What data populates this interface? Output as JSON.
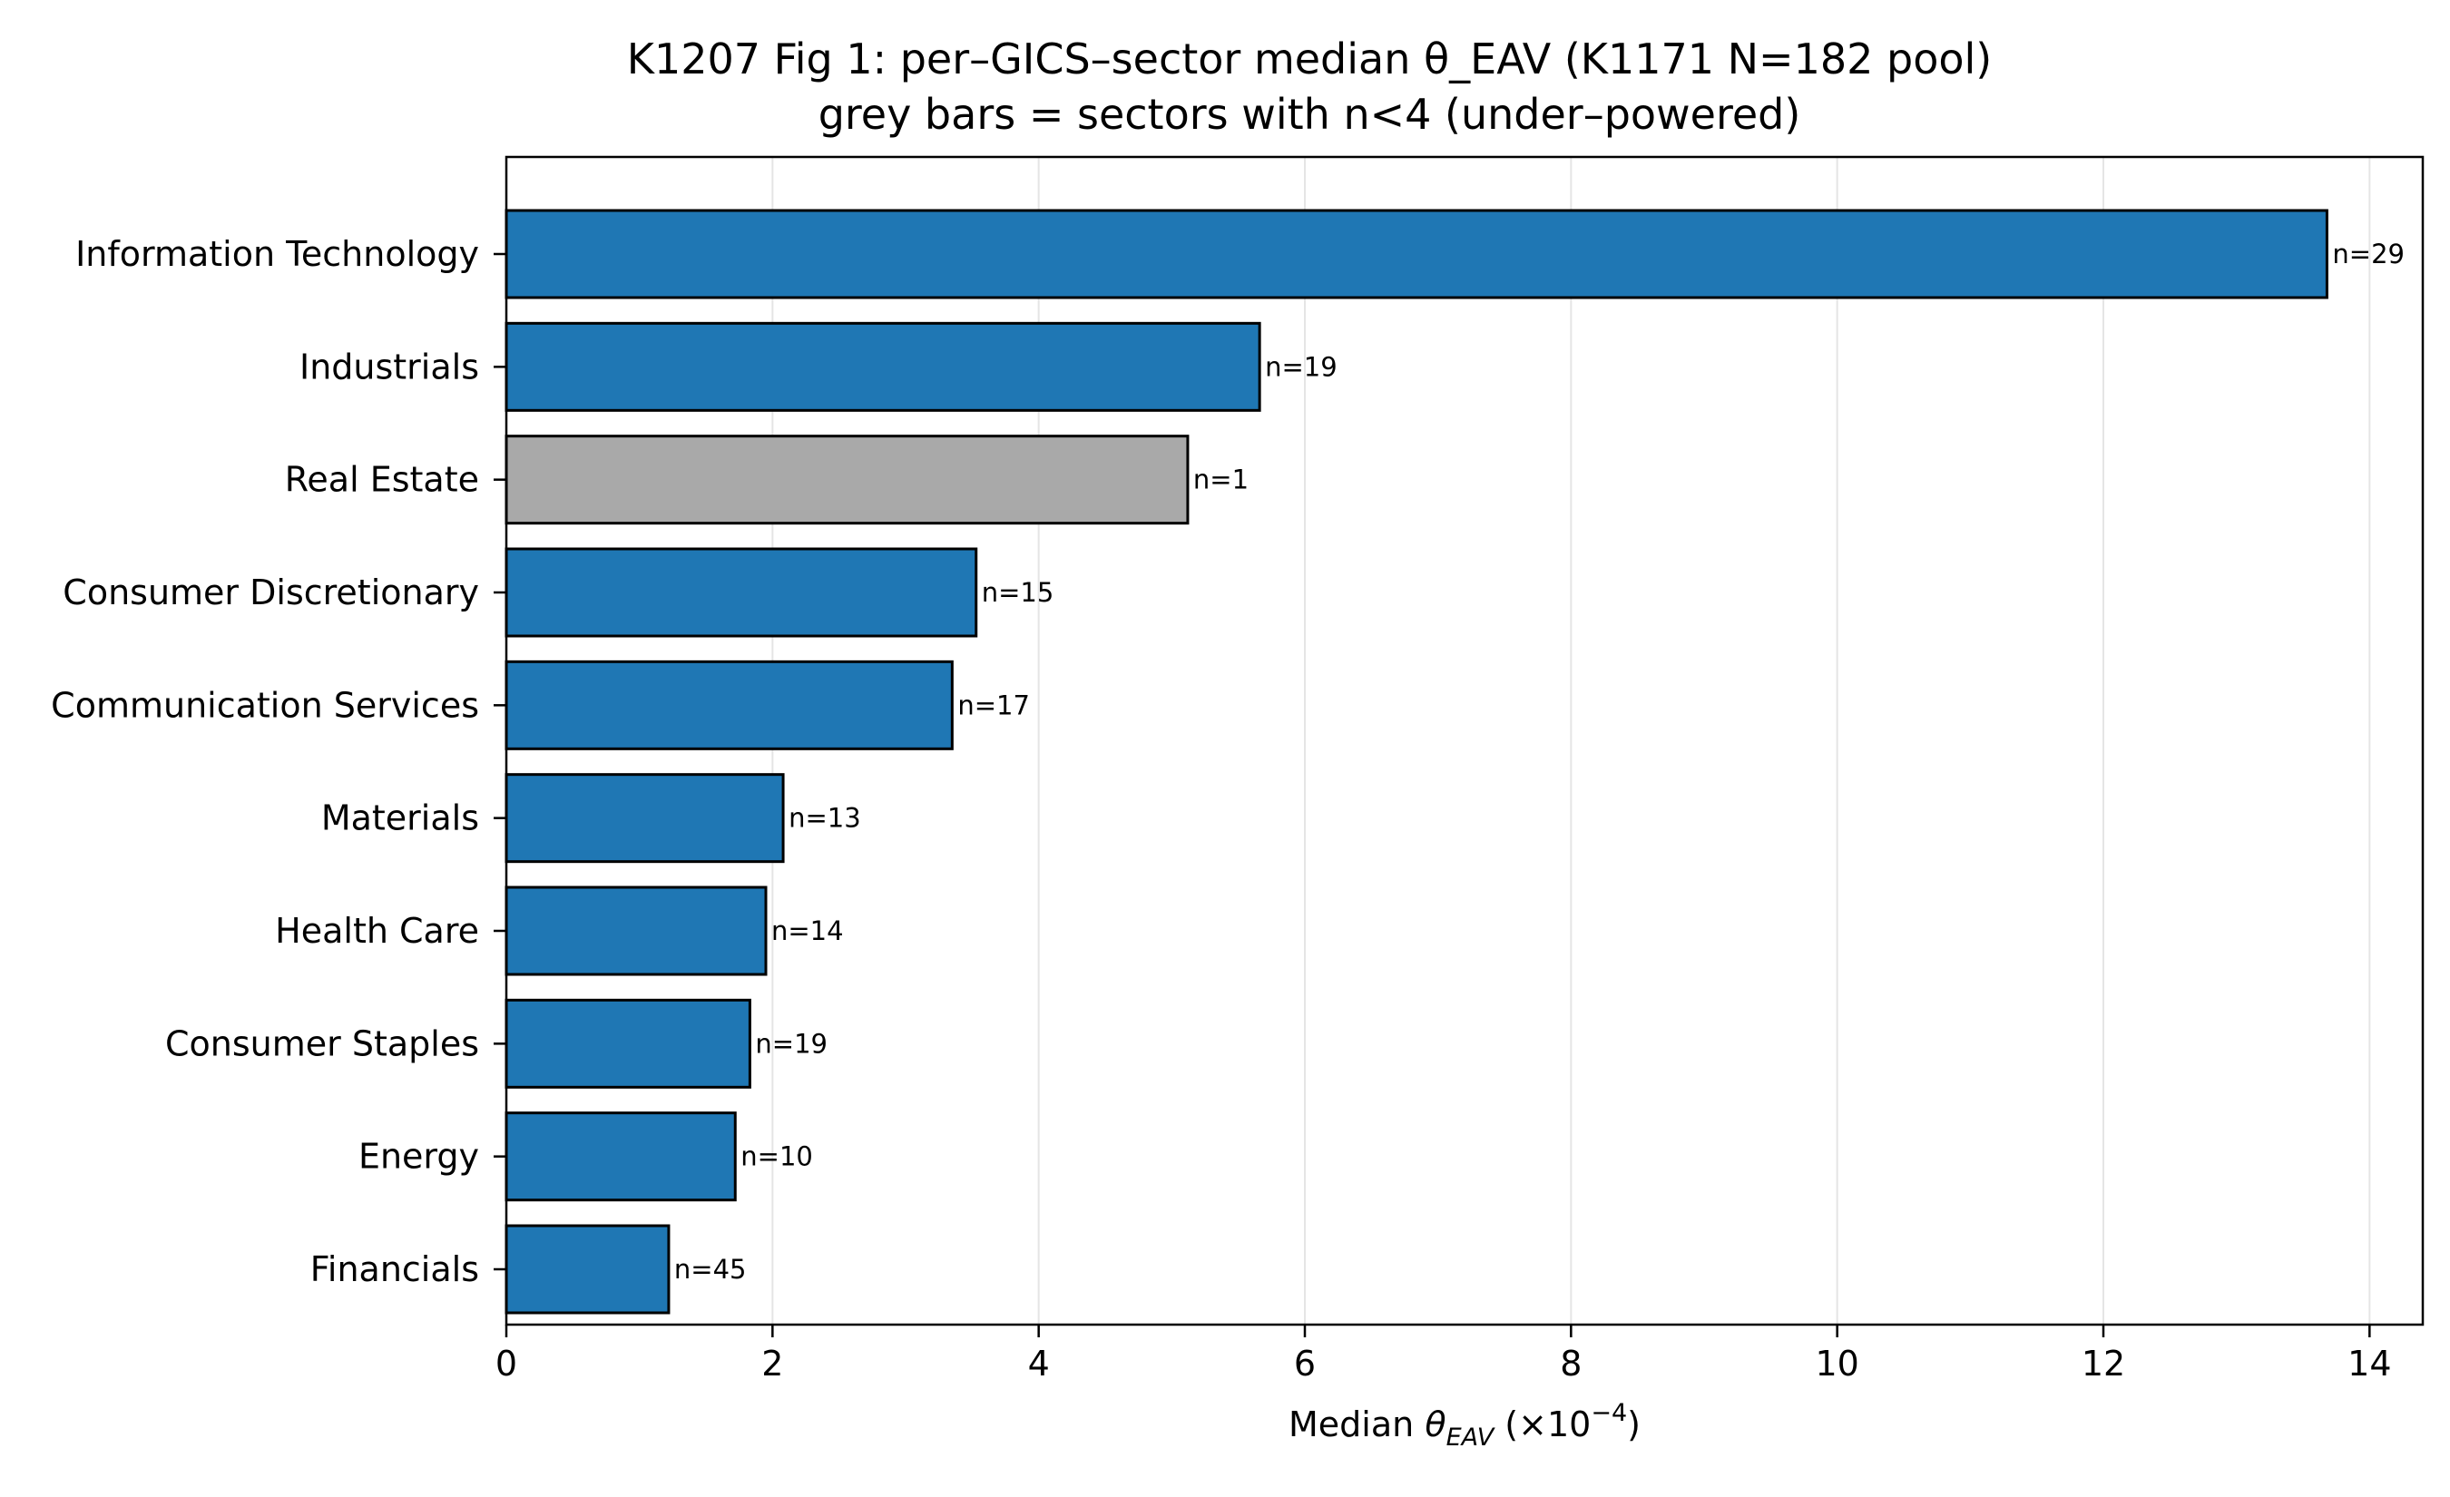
{
  "chart_data": {
    "type": "bar",
    "orientation": "horizontal",
    "title": "K1207 Fig 1: per–GICS–sector median θ_EAV (K1171 N=182 pool)",
    "subtitle": "grey bars = sectors with n<4 (under–powered)",
    "xlabel_prefix": "Median ",
    "xlabel_symbol": "θ",
    "xlabel_subscript": "EAV",
    "xlabel_unit": " (×10",
    "xlabel_exponent": "−4",
    "xlabel_close": ")",
    "xlim": [
      0,
      14.4
    ],
    "xticks": [
      0,
      2,
      4,
      6,
      8,
      10,
      12,
      14
    ],
    "xtick_labels": [
      "0",
      "2",
      "4",
      "6",
      "8",
      "10",
      "12",
      "14"
    ],
    "grid": "x",
    "categories": [
      "Information Technology",
      "Industrials",
      "Real Estate",
      "Consumer Discretionary",
      "Communication Services",
      "Materials",
      "Health Care",
      "Consumer Staples",
      "Energy",
      "Financials"
    ],
    "values": [
      13.68,
      5.66,
      5.12,
      3.53,
      3.35,
      2.08,
      1.95,
      1.83,
      1.72,
      1.22
    ],
    "n_labels": [
      "n=29",
      "n=19",
      "n=1",
      "n=15",
      "n=17",
      "n=13",
      "n=14",
      "n=19",
      "n=10",
      "n=45"
    ],
    "underpowered": [
      false,
      false,
      true,
      false,
      false,
      false,
      false,
      false,
      false,
      false
    ],
    "colors": {
      "normal": "#1f77b4",
      "underpowered": "#a9a9a9",
      "edge": "#000000",
      "grid": "#e5e5e5"
    }
  }
}
